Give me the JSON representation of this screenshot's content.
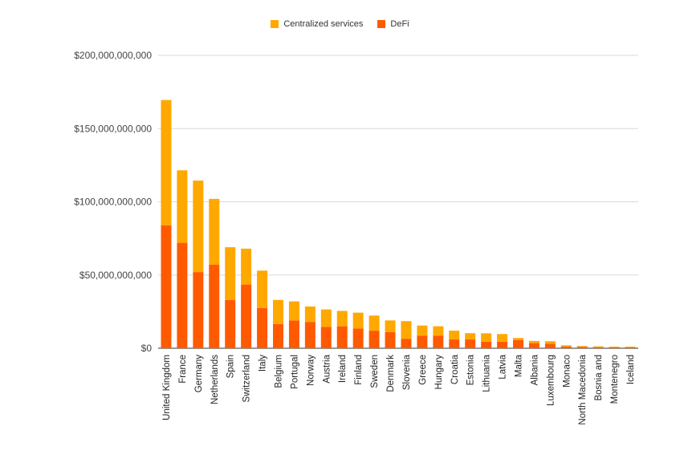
{
  "chart_data": {
    "type": "bar",
    "stacked": true,
    "categories": [
      "United Kingdom",
      "France",
      "Germany",
      "Netherlands",
      "Spain",
      "Switzerland",
      "Italy",
      "Belgium",
      "Portugal",
      "Norway",
      "Austria",
      "Ireland",
      "Finland",
      "Sweden",
      "Denmark",
      "Slovenia",
      "Greece",
      "Hungary",
      "Croatia",
      "Estonia",
      "Lithuania",
      "Latvia",
      "Malta",
      "Albania",
      "Luxembourg",
      "Monaco",
      "North Macedonia",
      "Bosnia and",
      "Montenegro",
      "Iceland"
    ],
    "series": [
      {
        "name": "DeFi",
        "color": "#ff5a00",
        "values": [
          84000000000,
          72000000000,
          52000000000,
          57000000000,
          33000000000,
          43500000000,
          27500000000,
          16500000000,
          19000000000,
          18000000000,
          14500000000,
          15000000000,
          13500000000,
          12000000000,
          11000000000,
          6500000000,
          8500000000,
          8500000000,
          6000000000,
          6000000000,
          4500000000,
          4500000000,
          5500000000,
          3500000000,
          3000000000,
          1200000000,
          1000000000,
          700000000,
          600000000,
          600000000
        ]
      },
      {
        "name": "Centralized services",
        "color": "#ffa800",
        "values": [
          85500000000,
          49500000000,
          62500000000,
          45000000000,
          36000000000,
          24500000000,
          25500000000,
          16500000000,
          13000000000,
          10500000000,
          12000000000,
          10500000000,
          10800000000,
          10300000000,
          8000000000,
          12000000000,
          7000000000,
          6500000000,
          6000000000,
          4300000000,
          5700000000,
          5200000000,
          1500000000,
          1500000000,
          1800000000,
          800000000,
          500000000,
          600000000,
          500000000,
          500000000
        ]
      }
    ],
    "legend_order": [
      "Centralized services",
      "DeFi"
    ],
    "legend_position": "top",
    "y_ticks": [
      "$0",
      "$50,000,000,000",
      "$100,000,000,000",
      "$150,000,000,000",
      "$200,000,000,000"
    ],
    "ylim": [
      0,
      200000000000
    ],
    "grid": true
  }
}
